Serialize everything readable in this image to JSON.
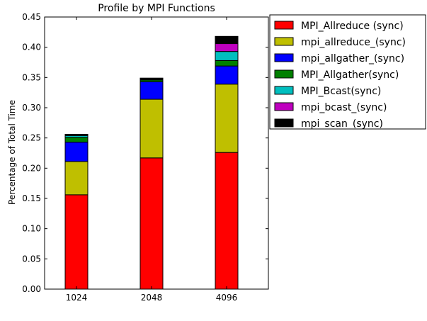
{
  "chart_data": {
    "type": "bar",
    "stacked": true,
    "title": "Profile by MPI Functions",
    "xlabel": "",
    "ylabel": "Percentage of Total Time",
    "categories": [
      "1024",
      "2048",
      "4096"
    ],
    "ylim": [
      0,
      0.45
    ],
    "yticks": [
      "0.00",
      "0.05",
      "0.10",
      "0.15",
      "0.20",
      "0.25",
      "0.30",
      "0.35",
      "0.40",
      "0.45"
    ],
    "grid": false,
    "legend_position": "top-right (outside plot)",
    "series": [
      {
        "name": "MPI_Allreduce (sync)",
        "color": "#ff0000",
        "values": [
          0.156,
          0.217,
          0.226
        ]
      },
      {
        "name": "mpi_allreduce_(sync)",
        "color": "#bfbf00",
        "values": [
          0.055,
          0.097,
          0.113
        ]
      },
      {
        "name": "mpi_allgather_(sync)",
        "color": "#0000ff",
        "values": [
          0.032,
          0.029,
          0.03
        ]
      },
      {
        "name": "MPI_Allgather(sync)",
        "color": "#008000",
        "values": [
          0.008,
          0.003,
          0.009
        ]
      },
      {
        "name": "MPI_Bcast(sync)",
        "color": "#00bfbf",
        "values": [
          0.003,
          0.001,
          0.015
        ]
      },
      {
        "name": "mpi_bcast_(sync)",
        "color": "#bf00bf",
        "values": [
          0.001,
          0.001,
          0.013
        ]
      },
      {
        "name": "mpi_scan_(sync)",
        "color": "#000000",
        "values": [
          0.001,
          0.001,
          0.012
        ]
      }
    ]
  }
}
